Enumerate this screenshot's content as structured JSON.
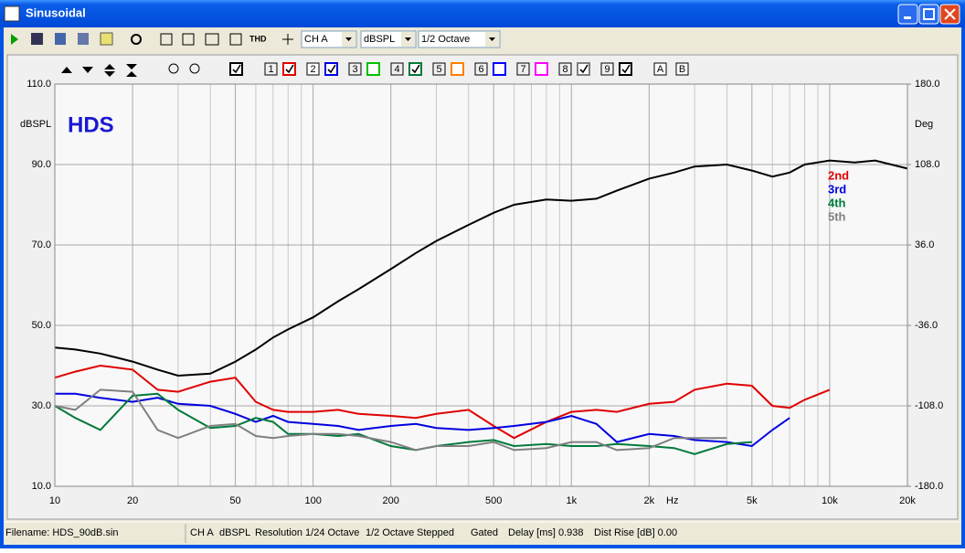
{
  "window": {
    "title": "Sinusoidal"
  },
  "toolbar": {
    "thd": "THD",
    "channel": "CH A",
    "unit": "dBSPL",
    "smoothing": "1/2 Octave"
  },
  "trace_toggles": [
    {
      "color": "#000000",
      "checked": true
    },
    {
      "label": "1",
      "color": "#e00000",
      "checked": true
    },
    {
      "label": "2",
      "color": "#0000e0",
      "checked": true
    },
    {
      "label": "3",
      "color": "#00c000",
      "checked": false
    },
    {
      "label": "4",
      "color": "#007a3a",
      "checked": true
    },
    {
      "label": "5",
      "color": "#ff8000",
      "checked": false
    },
    {
      "label": "6",
      "color": "#0000ff",
      "checked": false
    },
    {
      "label": "7",
      "color": "#ff00ff",
      "checked": false
    },
    {
      "label": "8",
      "color": "#808080",
      "checked": true
    },
    {
      "label": "9",
      "color": "#000000",
      "checked": true
    }
  ],
  "marker_buttons": [
    "A",
    "B"
  ],
  "chart_data": {
    "type": "line",
    "annotation": "HDS",
    "y_label": "dBSPL",
    "y2_label": "Deg",
    "x_unit": "Hz",
    "xlog": true,
    "grid": true,
    "xlim": [
      10,
      20000
    ],
    "xticks": [
      10,
      20,
      50,
      100,
      200,
      500,
      {
        "value": 1000,
        "label": "1k"
      },
      {
        "value": 2000,
        "label": "2k"
      },
      {
        "value": 5000,
        "label": "5k"
      },
      {
        "value": 10000,
        "label": "10k"
      },
      {
        "value": 20000,
        "label": "20k"
      }
    ],
    "xminor": [
      30,
      40,
      60,
      70,
      80,
      90,
      300,
      400,
      600,
      700,
      800,
      900,
      3000,
      4000,
      6000,
      7000,
      8000,
      9000
    ],
    "ylim": [
      10,
      110
    ],
    "yticks": [
      {
        "value": 10,
        "label": "10.0"
      },
      {
        "value": 30,
        "label": "30.0"
      },
      {
        "value": 50,
        "label": "50.0"
      },
      {
        "value": 70,
        "label": "70.0"
      },
      {
        "value": 90,
        "label": "90.0"
      },
      {
        "value": 110,
        "label": "110.0"
      }
    ],
    "y2lim": [
      -180,
      180
    ],
    "y2ticks": [
      {
        "value": -180,
        "label": "-180.0"
      },
      {
        "value": -108,
        "label": "-108.0"
      },
      {
        "value": -36,
        "label": "-36.0"
      },
      {
        "value": 36,
        "label": "36.0"
      },
      {
        "value": 108,
        "label": "108.0"
      },
      {
        "value": 180,
        "label": "180.0"
      }
    ],
    "x": [
      10,
      12,
      15,
      20,
      25,
      30,
      40,
      50,
      60,
      70,
      80,
      100,
      125,
      150,
      200,
      250,
      300,
      400,
      500,
      600,
      800,
      1000,
      1250,
      1500,
      2000,
      2500,
      3000,
      4000,
      5000,
      6000,
      7000,
      8000,
      10000,
      12500,
      15000,
      20000
    ],
    "series": [
      {
        "color": "#000000",
        "values": [
          44.5,
          44,
          43,
          41,
          39,
          37.5,
          38,
          41,
          44,
          47,
          49,
          52,
          56,
          59,
          64,
          68,
          71,
          75,
          78,
          80,
          81.3,
          81,
          81.5,
          83.5,
          86.5,
          88,
          89.5,
          90,
          88.5,
          87,
          88,
          90,
          91,
          90.5,
          91,
          89
        ]
      },
      {
        "name": "2nd",
        "color": "#e00000",
        "values": [
          37,
          38.5,
          40,
          39,
          34,
          33.5,
          36,
          37,
          31,
          29,
          28.5,
          28.5,
          29,
          28,
          27.5,
          27,
          28,
          29,
          25,
          22,
          26,
          28.5,
          29,
          28.5,
          30.5,
          31,
          34,
          35.5,
          35,
          30,
          29.5,
          31.5,
          34,
          null,
          null,
          null
        ]
      },
      {
        "name": "3rd",
        "color": "#0000e0",
        "values": [
          33,
          33,
          32,
          31,
          32,
          30.5,
          30,
          28,
          26,
          27.5,
          26,
          25.5,
          25,
          24,
          25,
          25.5,
          24.5,
          24,
          24.5,
          25,
          26,
          27.5,
          25.5,
          21,
          23,
          22.5,
          21.5,
          21,
          20,
          24,
          27,
          null,
          null,
          null,
          null,
          null
        ]
      },
      {
        "name": "4th",
        "color": "#007a3a",
        "values": [
          30,
          27,
          24,
          32.5,
          33,
          29,
          24.5,
          25,
          27,
          26,
          23,
          23,
          22.5,
          23,
          20,
          19,
          20,
          21,
          21.5,
          20,
          20.5,
          20,
          20,
          20.5,
          20,
          19.5,
          18,
          20.5,
          21,
          null,
          null,
          null,
          null,
          null,
          null,
          null
        ]
      },
      {
        "name": "5th",
        "color": "#808080",
        "values": [
          30,
          29,
          34,
          33.5,
          24,
          22,
          25,
          25.5,
          22.5,
          22,
          22.5,
          23,
          23,
          22.5,
          21,
          19,
          20,
          20,
          21,
          19,
          19.5,
          21,
          21,
          19,
          19.5,
          22,
          22,
          22,
          null,
          null,
          null,
          null,
          null,
          null,
          null,
          null
        ]
      }
    ]
  },
  "status_bar": {
    "filename": "Filename: HDS_90dB.sin",
    "items": [
      "CH A",
      "dBSPL",
      "Resolution 1/24 Octave",
      "1/2 Octave",
      "Stepped",
      "Gated",
      "Delay [ms] 0.938",
      "Dist Rise [dB] 0.00"
    ]
  }
}
